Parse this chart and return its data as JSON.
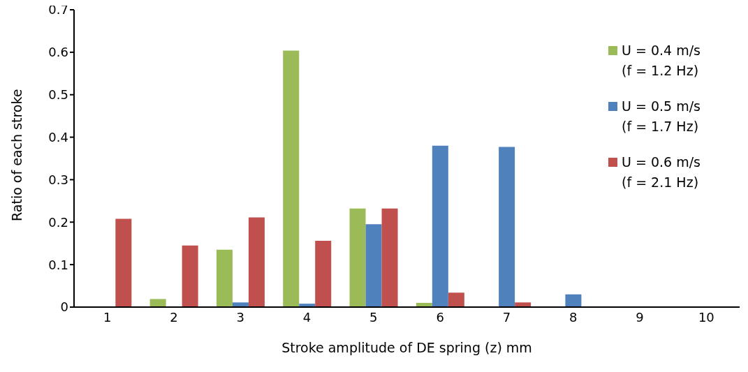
{
  "chart_data": {
    "type": "bar",
    "xlabel": "Stroke amplitude of DE spring (z) mm",
    "ylabel": "Ratio of each stroke",
    "categories": [
      "1",
      "2",
      "3",
      "4",
      "5",
      "6",
      "7",
      "8",
      "9",
      "10"
    ],
    "series": [
      {
        "name": "U = 0.4 m/s\n(f = 1.2 Hz)",
        "color": "#9bbb59",
        "values": [
          0,
          0.019,
          0.135,
          0.604,
          0.232,
          0.01,
          0,
          0,
          0,
          0
        ]
      },
      {
        "name": "U = 0.5 m/s\n(f = 1.7 Hz)",
        "color": "#4f81bd",
        "values": [
          0,
          0,
          0.011,
          0.008,
          0.195,
          0.38,
          0.377,
          0.03,
          0,
          0
        ]
      },
      {
        "name": "U = 0.6 m/s\n(f = 2.1 Hz)",
        "color": "#c0504d",
        "values": [
          0.208,
          0.145,
          0.211,
          0.156,
          0.232,
          0.034,
          0.011,
          0,
          0,
          0
        ]
      }
    ],
    "ylim": [
      0,
      0.7
    ],
    "yticks": [
      0,
      0.1,
      0.2,
      0.3,
      0.4,
      0.5,
      0.6,
      0.7
    ],
    "legend": "top right"
  }
}
